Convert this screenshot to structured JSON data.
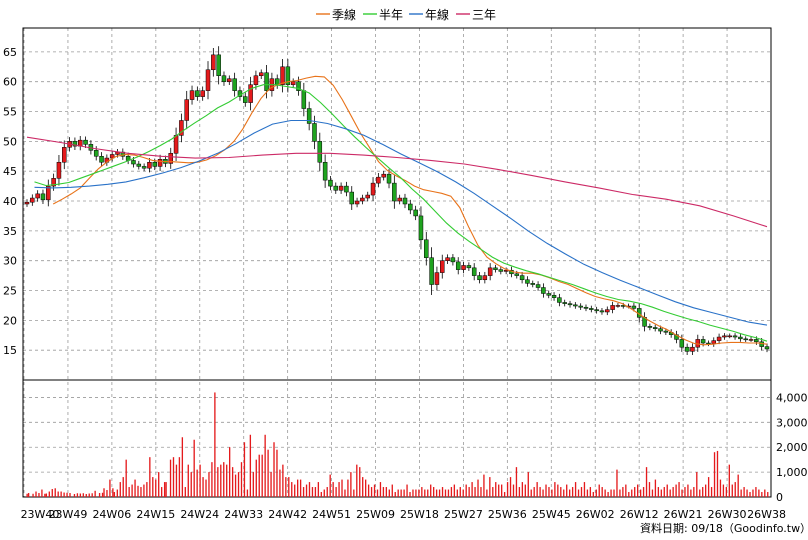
{
  "chart_data": {
    "type": "line",
    "legend": [
      {
        "name": "季線",
        "color": "#e8731a"
      },
      {
        "name": "半年",
        "color": "#33cc33"
      },
      {
        "name": "年線",
        "color": "#2a72c8"
      },
      {
        "name": "三年",
        "color": "#cc2a66"
      }
    ],
    "legend_position": "top-center",
    "grid": true,
    "price_axis": {
      "ticks": [
        15,
        20,
        25,
        30,
        35,
        40,
        45,
        50,
        55,
        60,
        65
      ],
      "ylim": [
        10,
        69
      ]
    },
    "volume_axis": {
      "tick_labels": [
        "4,000",
        "3,000",
        "2,000",
        "1,000",
        "0"
      ],
      "ticks": [
        4000,
        3000,
        2000,
        1000,
        0
      ],
      "ylim": [
        0,
        4700
      ]
    },
    "x_tick_labels": [
      "23W40",
      "23W49",
      "24W06",
      "24W15",
      "24W24",
      "24W33",
      "24W42",
      "24W51",
      "25W09",
      "25W18",
      "25W27",
      "25W36",
      "25W45",
      "26W02",
      "26W12",
      "26W21",
      "26W30",
      "26W38"
    ],
    "footer": "資料日期: 09/18（Goodinfo.tw）",
    "colors": {
      "up": "#e41a1c",
      "down": "#1fa31f",
      "volume": "#e41a1c",
      "grid": "#9a9a9a"
    },
    "closes": [
      39.8,
      40.5,
      41.2,
      40.2,
      42.5,
      43.8,
      46.5,
      49,
      50,
      49.2,
      50.2,
      49.5,
      48.5,
      47.5,
      46.5,
      47.2,
      47.8,
      48.2,
      47.5,
      46.8,
      46.2,
      45.8,
      45.5,
      46.5,
      45.8,
      47,
      46.3,
      48,
      51,
      53.5,
      57,
      58.5,
      57.5,
      58.5,
      62,
      64.5,
      61,
      60,
      60.5,
      58.5,
      57.5,
      56.5,
      59.5,
      61,
      61.5,
      58.5,
      60.5,
      59.5,
      62.5,
      59.5,
      60,
      58.5,
      55.5,
      53,
      50,
      46.5,
      43.5,
      42.5,
      41.8,
      42.5,
      41.5,
      39.5,
      40,
      40.5,
      41,
      43,
      44,
      44.5,
      43,
      40,
      40.5,
      39.5,
      38.5,
      37.5,
      33.5,
      30.5,
      26,
      28,
      30,
      30.5,
      29.8,
      28.5,
      29.2,
      28.8,
      27.5,
      26.8,
      27.5,
      28.8,
      28.5,
      28.2,
      28.4,
      27.8,
      27.5,
      26.8,
      26.2,
      26,
      25.5,
      24.5,
      24.2,
      23.8,
      23,
      22.8,
      22.6,
      22.4,
      22.2,
      22,
      21.8,
      21.6,
      21.4,
      21.8,
      22.5,
      22.5,
      22.4,
      22.4,
      22,
      20.5,
      19,
      18.8,
      18.6,
      18.2,
      18,
      17.6,
      16.8,
      15.5,
      14.8,
      15.5,
      16.8,
      16.2,
      16.1,
      16.6,
      17.2,
      17.4,
      17.4,
      17.2,
      16.9,
      16.8,
      16.8,
      16.4,
      15.6,
      15.2
    ],
    "ma_quarter": [
      39.5,
      40.3,
      41.2,
      42.2,
      43.8,
      45.4,
      46.6,
      47.5,
      47.8,
      47.7,
      47.3,
      46.8,
      46.6,
      46.6,
      46.5,
      46.4,
      46.5,
      46.9,
      47.6,
      48.6,
      50,
      52.1,
      54.8,
      57.2,
      58.9,
      59.6,
      60,
      60.2,
      60.6,
      60.9,
      60.8,
      59.4,
      57,
      54.2,
      51.4,
      49,
      46.6,
      45.1,
      44.2,
      43.4,
      42.5,
      41.9,
      41.6,
      41.3,
      40.8,
      38.9,
      35.6,
      32.6,
      30.6,
      29.5,
      28.6,
      28.1,
      27.9,
      27.9,
      27.6,
      27.1,
      26.5,
      26,
      25.3,
      24.6,
      24,
      23.6,
      23.3,
      22.8,
      21.9,
      20.9,
      19.9,
      19.1,
      18.4,
      17.5,
      16.7,
      16.1,
      15.9,
      16,
      16.2,
      16.3,
      16.3,
      16.2,
      16.2,
      16
    ],
    "ma_half": [
      43.2,
      42.6,
      42.8,
      43.1,
      43.8,
      44.5,
      45.2,
      45.9,
      46.6,
      47.4,
      48.3,
      49.3,
      50.4,
      51.8,
      53.1,
      54.3,
      55.6,
      56.6,
      57.8,
      58.9,
      59.5,
      59.5,
      59.2,
      58.9,
      58.1,
      56.5,
      54.6,
      52.6,
      50.7,
      48.9,
      47.2,
      45.5,
      43.9,
      42,
      40.3,
      38.3,
      36.3,
      34.6,
      33.2,
      31.9,
      30.6,
      29.6,
      28.9,
      28.3,
      27.8,
      27.2,
      26.6,
      26,
      25.3,
      24.6,
      24,
      23.5,
      23.2,
      22.8,
      22.2,
      21.5,
      20.9,
      20.3,
      19.8,
      19.2,
      18.7,
      18.2,
      17.6,
      17.1,
      16.5
    ],
    "ma_year": [
      42.3,
      42.2,
      42.3,
      42.5,
      42.8,
      43.2,
      43.9,
      44.7,
      45.6,
      46.7,
      48,
      49.6,
      51.4,
      52.9,
      53.5,
      53.5,
      53,
      52.1,
      51,
      49.5,
      47.9,
      46.4,
      44.9,
      43.2,
      41.3,
      39.2,
      37.1,
      34.9,
      32.9,
      31.1,
      29.4,
      28,
      26.7,
      25.5,
      24.3,
      23.1,
      22.1,
      21.3,
      20.5,
      19.7,
      19.2
    ],
    "ma_3y": [
      50.7,
      49.8,
      48.8,
      48,
      47.5,
      47.2,
      47.3,
      47.7,
      48,
      48,
      47.7,
      47.3,
      46.8,
      46.2,
      45.3,
      44.3,
      43.2,
      42.2,
      41.1,
      40.3,
      39.2,
      37.5,
      35.7
    ],
    "volume_bars": [
      [
        1,
        130
      ],
      [
        2,
        160
      ],
      [
        5,
        130
      ],
      [
        7,
        220
      ],
      [
        9,
        160
      ],
      [
        11,
        300
      ],
      [
        13,
        130
      ],
      [
        14,
        140
      ],
      [
        16,
        220
      ],
      [
        18,
        320
      ],
      [
        20,
        350
      ],
      [
        22,
        220
      ],
      [
        24,
        220
      ],
      [
        26,
        180
      ],
      [
        28,
        170
      ],
      [
        30,
        160
      ],
      [
        33,
        120
      ],
      [
        35,
        150
      ],
      [
        37,
        140
      ],
      [
        39,
        150
      ],
      [
        41,
        120
      ],
      [
        43,
        140
      ],
      [
        45,
        150
      ],
      [
        47,
        250
      ],
      [
        50,
        160
      ],
      [
        52,
        170
      ],
      [
        53,
        350
      ],
      [
        55,
        280
      ],
      [
        57,
        700
      ],
      [
        59,
        350
      ],
      [
        60,
        200
      ],
      [
        62,
        300
      ],
      [
        64,
        600
      ],
      [
        66,
        800
      ],
      [
        68,
        1500
      ],
      [
        70,
        400
      ],
      [
        72,
        500
      ],
      [
        74,
        700
      ],
      [
        76,
        450
      ],
      [
        78,
        400
      ],
      [
        80,
        500
      ],
      [
        82,
        600
      ],
      [
        84,
        1600
      ],
      [
        86,
        800
      ],
      [
        88,
        700
      ],
      [
        90,
        1000
      ],
      [
        92,
        400
      ],
      [
        94,
        600
      ],
      [
        95,
        600
      ],
      [
        98,
        1500
      ],
      [
        100,
        1600
      ],
      [
        102,
        1300
      ],
      [
        104,
        1600
      ],
      [
        106,
        2400
      ],
      [
        108,
        400
      ],
      [
        110,
        1300
      ],
      [
        112,
        1000
      ],
      [
        114,
        2300
      ],
      [
        116,
        1100
      ],
      [
        118,
        1300
      ],
      [
        120,
        800
      ],
      [
        122,
        700
      ],
      [
        124,
        1000
      ],
      [
        126,
        1400
      ],
      [
        128,
        1500
      ],
      [
        130,
        1200
      ],
      [
        132,
        1300
      ],
      [
        134,
        1400
      ],
      [
        136,
        1300
      ],
      [
        138,
        600
      ],
      [
        140,
        1200
      ],
      [
        142,
        900
      ],
      [
        144,
        1000
      ],
      [
        146,
        1400
      ],
      [
        148,
        1700
      ],
      [
        150,
        300
      ],
      [
        152,
        1800
      ],
      [
        154,
        1000
      ],
      [
        156,
        1500
      ],
      [
        158,
        1700
      ],
      [
        160,
        1400
      ],
      [
        162,
        2500
      ],
      [
        164,
        1900
      ],
      [
        166,
        1000
      ],
      [
        168,
        2200
      ],
      [
        170,
        1900
      ],
      [
        172,
        1100
      ],
      [
        174,
        1300
      ],
      [
        176,
        800
      ],
      [
        178,
        800
      ],
      [
        180,
        600
      ],
      [
        182,
        500
      ],
      [
        184,
        700
      ],
      [
        186,
        700
      ],
      [
        188,
        400
      ],
      [
        190,
        500
      ],
      [
        192,
        600
      ],
      [
        194,
        400
      ],
      [
        196,
        400
      ],
      [
        198,
        600
      ],
      [
        200,
        200
      ],
      [
        202,
        300
      ],
      [
        204,
        400
      ],
      [
        206,
        900
      ],
      [
        208,
        600
      ],
      [
        210,
        400
      ],
      [
        212,
        600
      ],
      [
        214,
        700
      ],
      [
        216,
        300
      ],
      [
        218,
        700
      ],
      [
        220,
        1000
      ],
      [
        222,
        300
      ],
      [
        224,
        1300
      ],
      [
        226,
        1200
      ],
      [
        228,
        800
      ],
      [
        230,
        700
      ],
      [
        232,
        500
      ],
      [
        234,
        400
      ],
      [
        236,
        500
      ],
      [
        238,
        300
      ],
      [
        240,
        600
      ],
      [
        242,
        400
      ],
      [
        244,
        400
      ],
      [
        246,
        300
      ],
      [
        248,
        500
      ],
      [
        250,
        200
      ],
      [
        252,
        300
      ],
      [
        254,
        300
      ],
      [
        256,
        300
      ],
      [
        258,
        500
      ],
      [
        260,
        200
      ],
      [
        262,
        300
      ],
      [
        264,
        300
      ],
      [
        266,
        300
      ],
      [
        268,
        400
      ],
      [
        270,
        300
      ],
      [
        272,
        300
      ],
      [
        274,
        500
      ],
      [
        276,
        400
      ],
      [
        278,
        300
      ],
      [
        280,
        300
      ],
      [
        282,
        400
      ],
      [
        284,
        300
      ],
      [
        286,
        300
      ],
      [
        288,
        400
      ],
      [
        290,
        500
      ],
      [
        292,
        300
      ],
      [
        294,
        400
      ],
      [
        296,
        300
      ],
      [
        298,
        500
      ],
      [
        300,
        400
      ],
      [
        302,
        600
      ],
      [
        304,
        400
      ],
      [
        306,
        700
      ],
      [
        308,
        400
      ],
      [
        310,
        900
      ],
      [
        312,
        300
      ],
      [
        314,
        800
      ],
      [
        316,
        400
      ],
      [
        318,
        600
      ],
      [
        320,
        500
      ],
      [
        322,
        500
      ],
      [
        324,
        200
      ],
      [
        326,
        600
      ],
      [
        328,
        800
      ],
      [
        330,
        500
      ],
      [
        332,
        1200
      ],
      [
        334,
        400
      ],
      [
        336,
        600
      ],
      [
        338,
        500
      ],
      [
        340,
        1000
      ],
      [
        342,
        300
      ],
      [
        344,
        400
      ],
      [
        346,
        600
      ],
      [
        348,
        400
      ],
      [
        350,
        300
      ],
      [
        352,
        500
      ],
      [
        354,
        400
      ],
      [
        356,
        300
      ],
      [
        358,
        600
      ],
      [
        360,
        500
      ],
      [
        362,
        400
      ],
      [
        364,
        300
      ],
      [
        366,
        500
      ],
      [
        368,
        300
      ],
      [
        370,
        400
      ],
      [
        372,
        600
      ],
      [
        374,
        300
      ],
      [
        376,
        400
      ],
      [
        378,
        600
      ],
      [
        380,
        300
      ],
      [
        382,
        400
      ],
      [
        384,
        200
      ],
      [
        386,
        300
      ],
      [
        388,
        500
      ],
      [
        390,
        400
      ],
      [
        392,
        300
      ],
      [
        394,
        200
      ],
      [
        396,
        300
      ],
      [
        398,
        300
      ],
      [
        400,
        700
      ],
      [
        402,
        300
      ],
      [
        404,
        400
      ],
      [
        406,
        500
      ],
      [
        408,
        200
      ],
      [
        410,
        300
      ],
      [
        412,
        400
      ],
      [
        414,
        500
      ],
      [
        416,
        300
      ],
      [
        418,
        400
      ],
      [
        420,
        1200
      ],
      [
        422,
        600
      ],
      [
        424,
        300
      ],
      [
        426,
        700
      ],
      [
        428,
        400
      ],
      [
        430,
        300
      ],
      [
        432,
        400
      ],
      [
        434,
        500
      ],
      [
        436,
        300
      ],
      [
        438,
        400
      ],
      [
        440,
        500
      ],
      [
        442,
        600
      ],
      [
        444,
        300
      ],
      [
        446,
        400
      ],
      [
        448,
        500
      ],
      [
        450,
        300
      ],
      [
        452,
        400
      ],
      [
        454,
        1000
      ],
      [
        456,
        300
      ],
      [
        458,
        400
      ],
      [
        460,
        500
      ],
      [
        462,
        800
      ],
      [
        464,
        400
      ],
      [
        466,
        1800
      ],
      [
        468,
        1800
      ],
      [
        470,
        700
      ],
      [
        472,
        500
      ],
      [
        474,
        400
      ],
      [
        476,
        300
      ],
      [
        478,
        500
      ],
      [
        480,
        600
      ],
      [
        482,
        900
      ],
      [
        484,
        300
      ],
      [
        486,
        400
      ],
      [
        488,
        300
      ],
      [
        490,
        200
      ],
      [
        492,
        300
      ],
      [
        494,
        400
      ],
      [
        496,
        300
      ],
      [
        498,
        200
      ],
      [
        500,
        300
      ],
      [
        502,
        200
      ],
      [
        504,
        300
      ]
    ],
    "volume_highlights": [
      [
        128,
        4200
      ],
      [
        138,
        2000
      ],
      [
        148,
        2200
      ],
      [
        152,
        2500
      ],
      [
        160,
        1700
      ],
      [
        170,
        1900
      ],
      [
        466,
        1800
      ],
      [
        468,
        1850
      ],
      [
        476,
        1300
      ],
      [
        420,
        1200
      ],
      [
        400,
        1100
      ]
    ]
  }
}
